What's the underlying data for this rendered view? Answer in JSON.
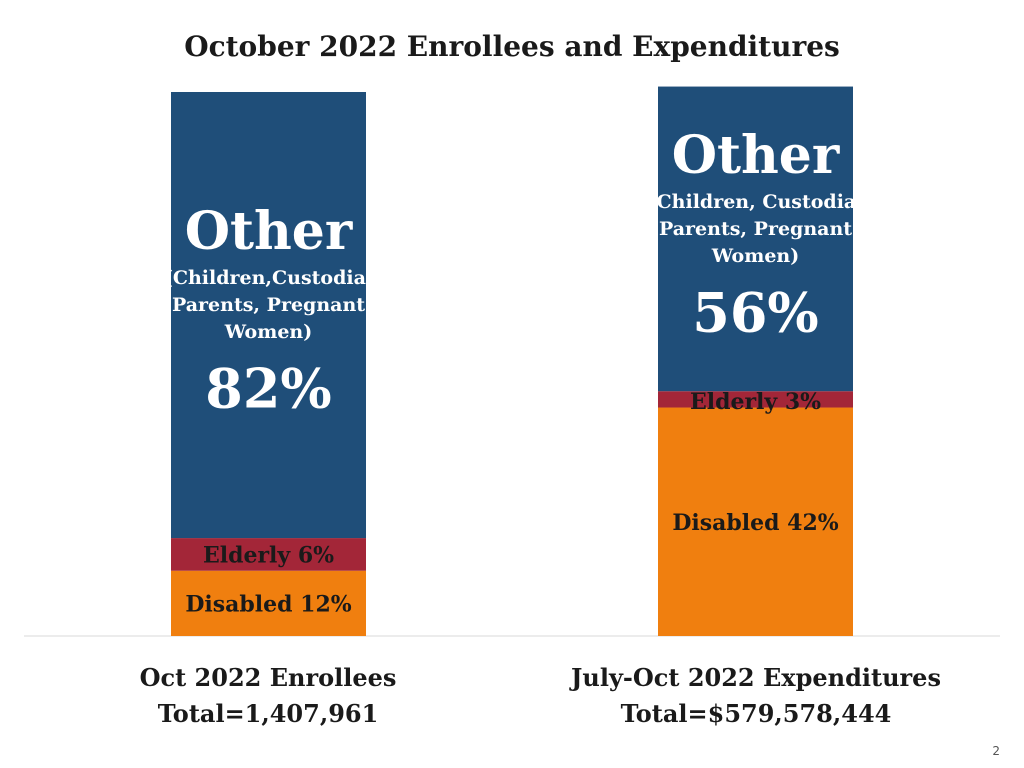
{
  "title": "October 2022 Enrollees and Expenditures",
  "page_number": "2",
  "colors": {
    "Other": "#1f4e79",
    "Elderly": "#a32638",
    "Disabled": "#f07f0f",
    "axis": "#d9d9d9"
  },
  "chart_data": {
    "type": "bar",
    "stacked": true,
    "normalized_percent": true,
    "ylim": [
      0,
      100
    ],
    "grid": false,
    "categories": [
      "Oct 2022 Enrollees",
      "July-Oct 2022 Expenditures"
    ],
    "category_totals": [
      "Total=1,407,961",
      "Total=$579,578,444"
    ],
    "series": [
      {
        "name": "Disabled",
        "values": [
          12,
          42
        ],
        "labels": [
          "Disabled 12%",
          "Disabled 42%"
        ]
      },
      {
        "name": "Elderly",
        "values": [
          6,
          3
        ],
        "labels": [
          "Elderly 6%",
          "Elderly 3%"
        ]
      },
      {
        "name": "Other",
        "values": [
          82,
          56
        ],
        "heading": "Other",
        "descriptions": [
          [
            "(Children,Custodial",
            "Parents, Pregnant",
            "Women)"
          ],
          [
            "(Children, Custodial",
            "Parents, Pregnant",
            "Women)"
          ]
        ],
        "labels": [
          "82%",
          "56%"
        ]
      }
    ]
  }
}
